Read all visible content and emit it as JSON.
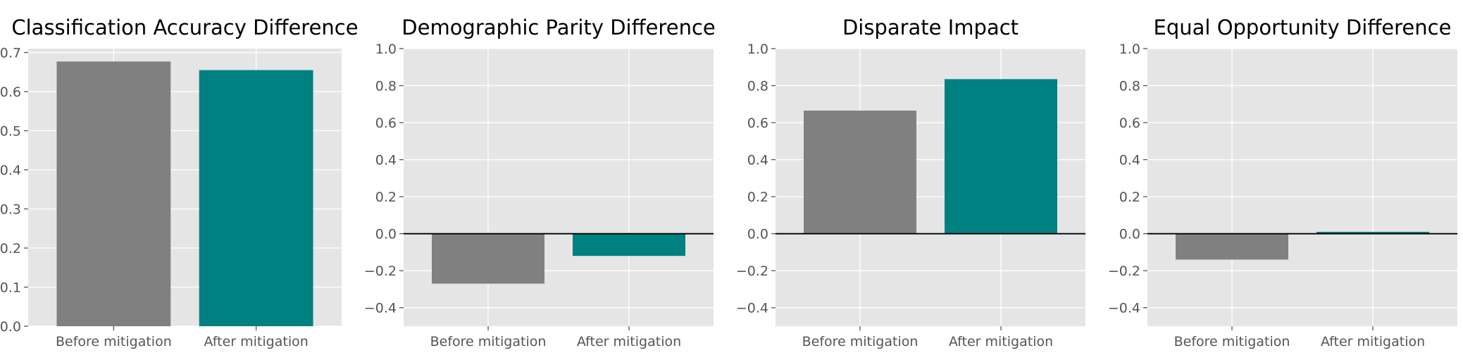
{
  "chart_data": [
    {
      "type": "bar",
      "title": "Classification Accuracy Difference",
      "categories": [
        "Before mitigation",
        "After mitigation"
      ],
      "values": [
        0.677,
        0.655
      ],
      "colors": [
        "#808080",
        "#008080"
      ],
      "ylim": [
        0.0,
        0.71
      ],
      "yticks": [
        0.0,
        0.1,
        0.2,
        0.3,
        0.4,
        0.5,
        0.6,
        0.7
      ],
      "zero_line": false,
      "xlabel": "",
      "ylabel": "",
      "grid": true
    },
    {
      "type": "bar",
      "title": "Demographic Parity Difference",
      "categories": [
        "Before mitigation",
        "After mitigation"
      ],
      "values": [
        -0.27,
        -0.12
      ],
      "colors": [
        "#808080",
        "#008080"
      ],
      "ylim": [
        -0.5,
        1.0
      ],
      "yticks": [
        -0.4,
        -0.2,
        0.0,
        0.2,
        0.4,
        0.6,
        0.8,
        1.0
      ],
      "zero_line": true,
      "xlabel": "",
      "ylabel": "",
      "grid": true
    },
    {
      "type": "bar",
      "title": "Disparate Impact",
      "categories": [
        "Before mitigation",
        "After mitigation"
      ],
      "values": [
        0.665,
        0.835
      ],
      "colors": [
        "#808080",
        "#008080"
      ],
      "ylim": [
        -0.5,
        1.0
      ],
      "yticks": [
        -0.4,
        -0.2,
        0.0,
        0.2,
        0.4,
        0.6,
        0.8,
        1.0
      ],
      "zero_line": true,
      "xlabel": "",
      "ylabel": "",
      "grid": true
    },
    {
      "type": "bar",
      "title": "Equal Opportunity Difference",
      "categories": [
        "Before mitigation",
        "After mitigation"
      ],
      "values": [
        -0.14,
        0.01
      ],
      "colors": [
        "#808080",
        "#008080"
      ],
      "ylim": [
        -0.5,
        1.0
      ],
      "yticks": [
        -0.4,
        -0.2,
        0.0,
        0.2,
        0.4,
        0.6,
        0.8,
        1.0
      ],
      "zero_line": true,
      "xlabel": "",
      "ylabel": "",
      "grid": true
    }
  ]
}
